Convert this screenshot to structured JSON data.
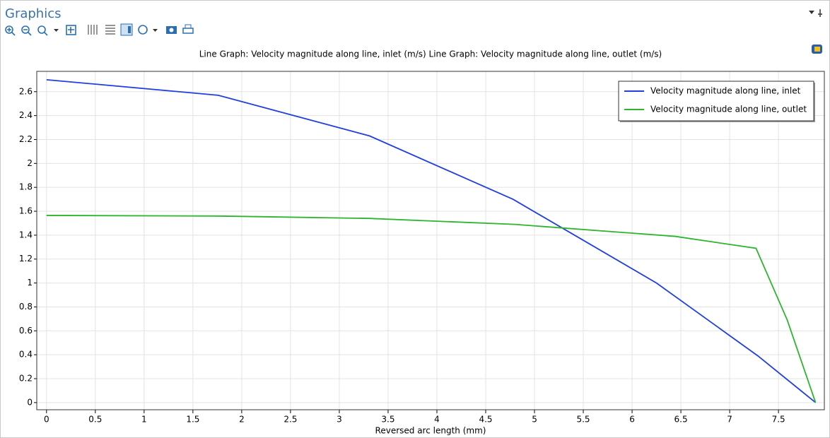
{
  "panel": {
    "title": "Graphics"
  },
  "chart_data": {
    "type": "line",
    "title": "Line Graph: Velocity magnitude along line, inlet (m/s)  Line Graph: Velocity magnitude along line, outlet (m/s)",
    "xlabel": "Reversed arc length (mm)",
    "xlim": [
      -0.1,
      7.97
    ],
    "ylim": [
      -0.06,
      2.77
    ],
    "xticks": [
      0,
      0.5,
      1,
      1.5,
      2,
      2.5,
      3,
      3.5,
      4,
      4.5,
      5,
      5.5,
      6,
      6.5,
      7,
      7.5
    ],
    "yticks": [
      0,
      0.2,
      0.4,
      0.6,
      0.8,
      1,
      1.2,
      1.4,
      1.6,
      1.8,
      2,
      2.2,
      2.4,
      2.6
    ],
    "grid": true,
    "legend": "upper right",
    "series": [
      {
        "name": "Velocity magnitude along line, inlet",
        "color": "#1f3fe0",
        "x": [
          0,
          1.76,
          3.31,
          4.78,
          6.25,
          7.29,
          7.88
        ],
        "values": [
          2.7,
          2.57,
          2.23,
          1.7,
          1.0,
          0.39,
          0
        ]
      },
      {
        "name": "Velocity magnitude along line, outlet",
        "color": "#2db52d",
        "x": [
          0,
          1.76,
          3.31,
          4.8,
          6.44,
          7.27,
          7.59,
          7.88
        ],
        "values": [
          1.565,
          1.56,
          1.54,
          1.49,
          1.39,
          1.29,
          0.69,
          0
        ]
      }
    ]
  }
}
